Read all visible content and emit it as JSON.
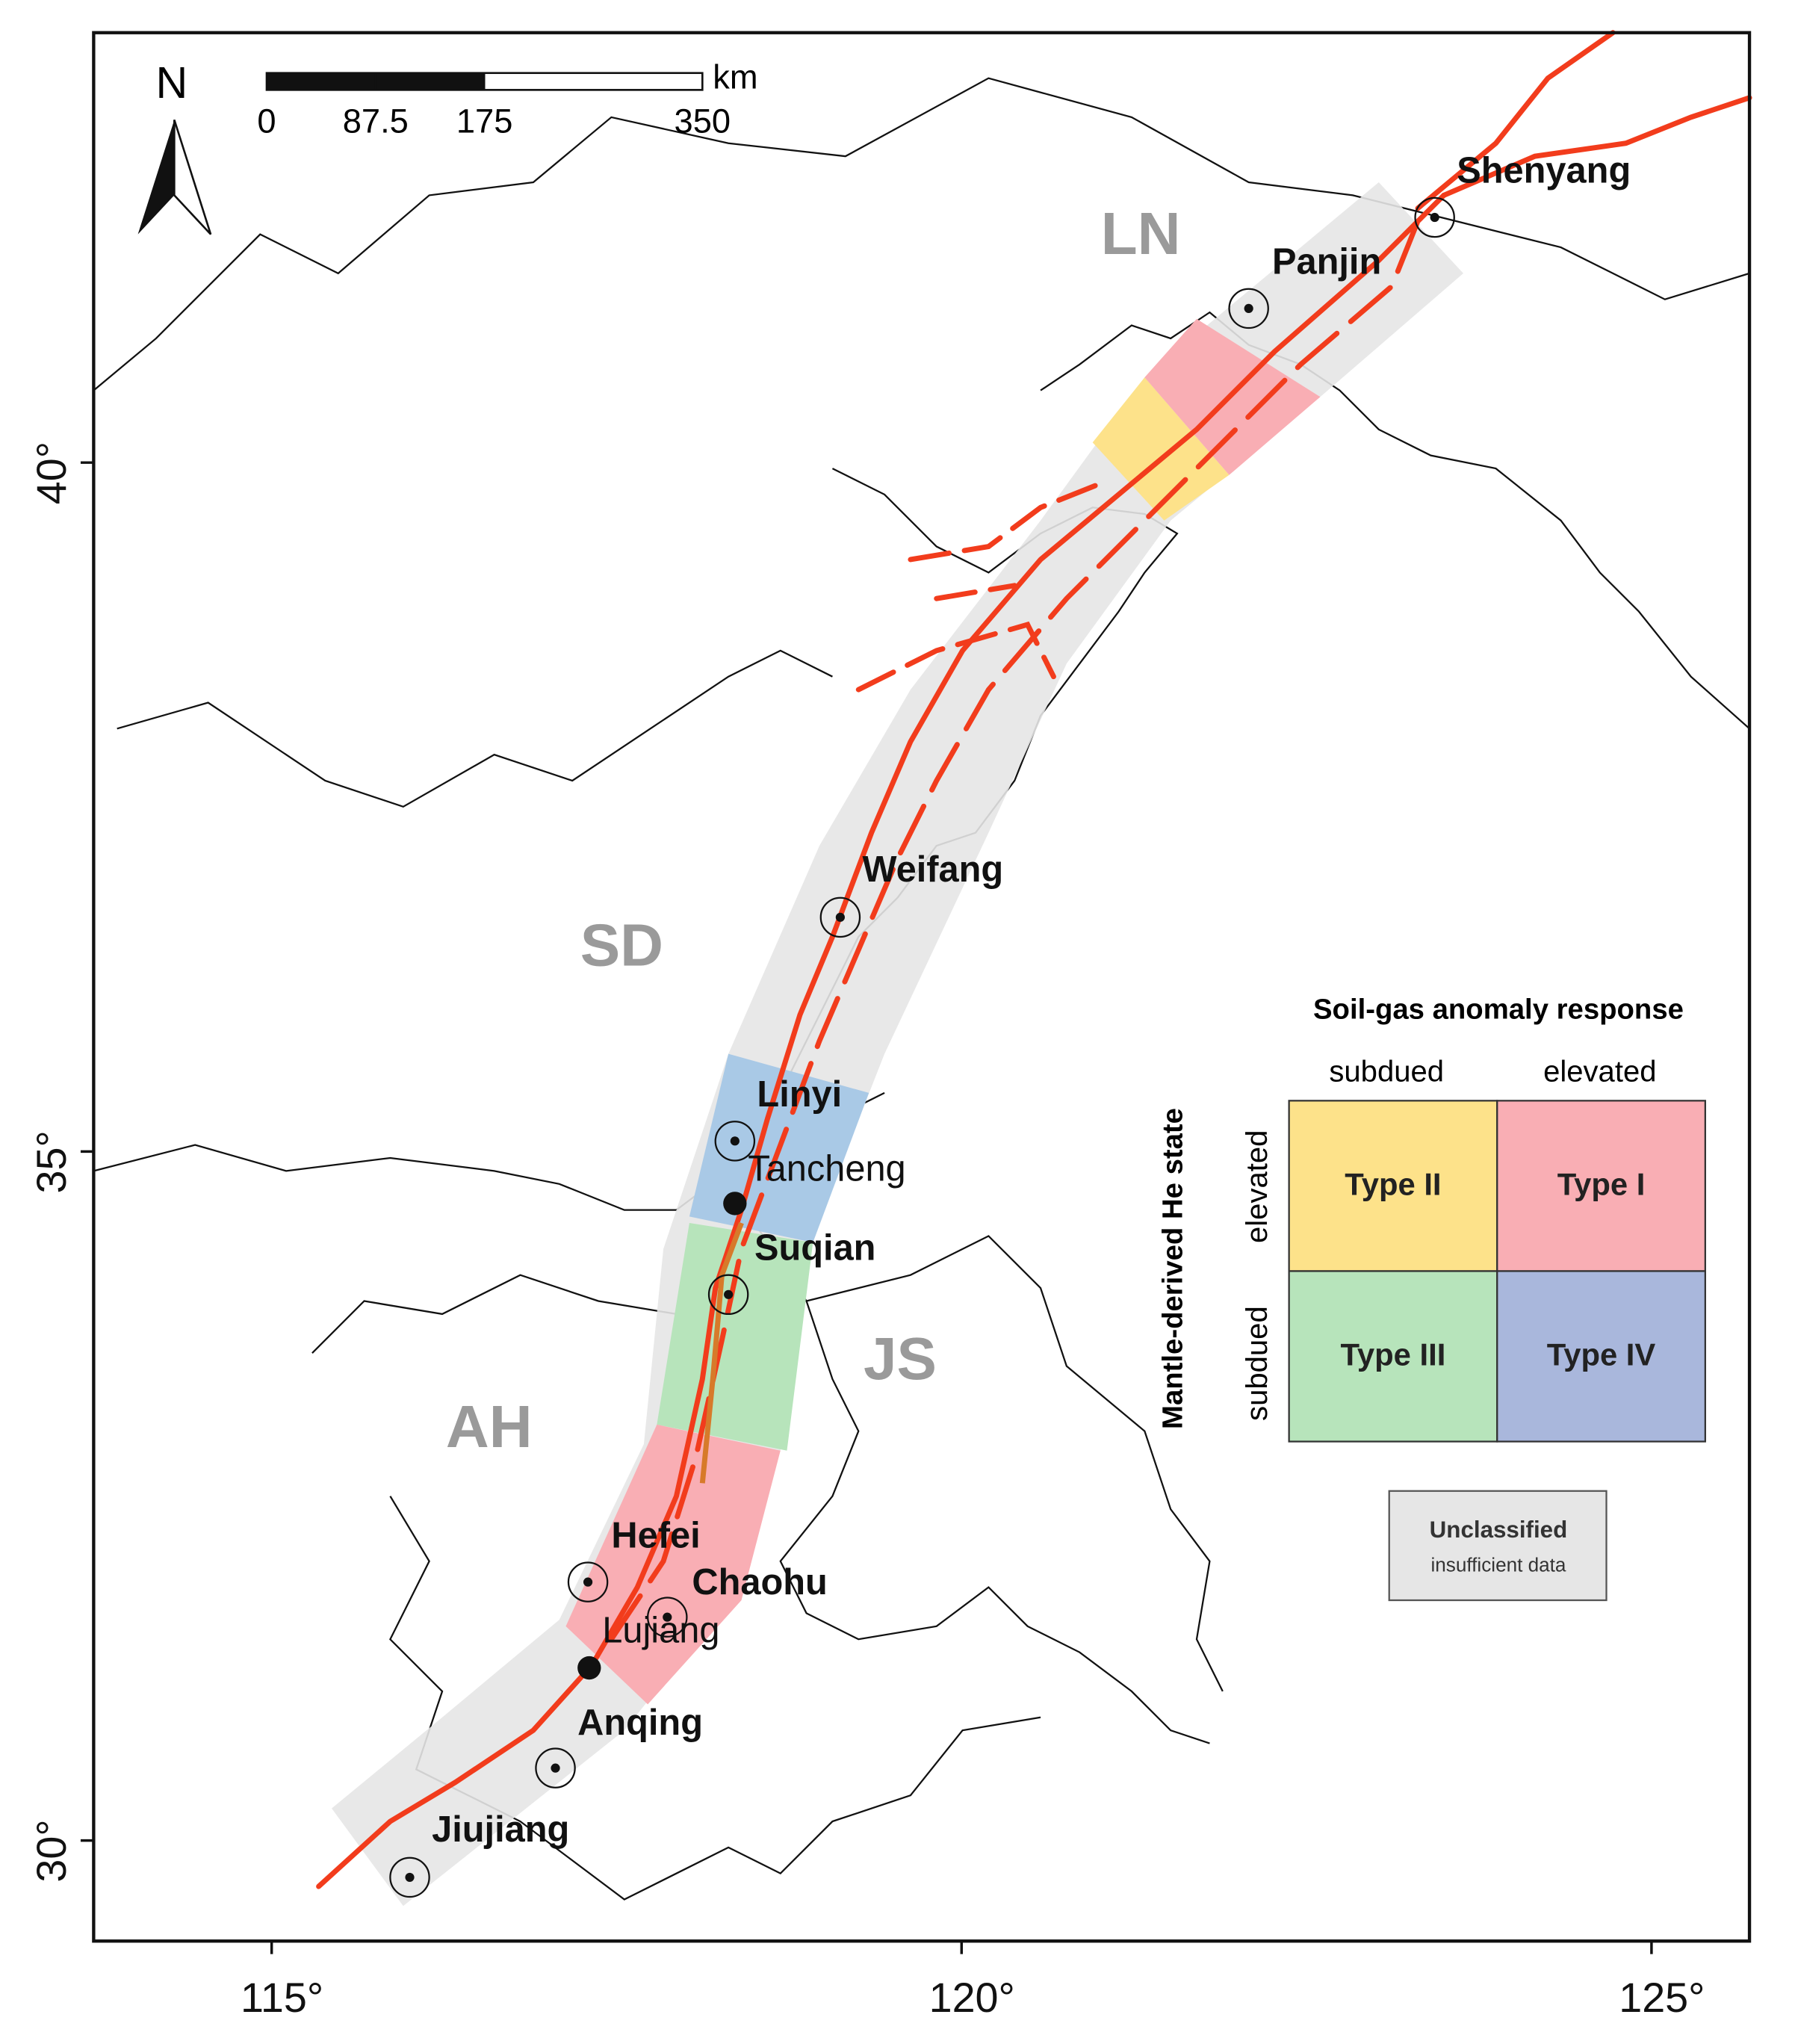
{
  "map": {
    "north_label": "N",
    "scale_bar": {
      "unit": "km",
      "ticks": [
        0,
        87.5,
        175,
        350
      ]
    },
    "lonlim": [
      113.71,
      125.71
    ],
    "latlim": [
      29.27,
      43.12
    ],
    "lon_ticks": [
      {
        "value": 115,
        "label": "115°"
      },
      {
        "value": 120,
        "label": "120°"
      },
      {
        "value": 125,
        "label": "125°"
      }
    ],
    "lat_ticks": [
      {
        "value": 30,
        "label": "30°"
      },
      {
        "value": 35,
        "label": "35°"
      },
      {
        "value": 40,
        "label": "40°"
      }
    ],
    "provinces": [
      "LN",
      "SD",
      "JS",
      "AH"
    ],
    "cities": [
      "Shenyang",
      "Panjin",
      "Weifang",
      "Linyi",
      "Tancheng",
      "Suqian",
      "Hefei",
      "Chaohu",
      "Lujiang",
      "Anqing",
      "Jiujiang"
    ]
  },
  "legend": {
    "title": "Soil-gas anomaly response",
    "columns": [
      "subdued",
      "elevated"
    ],
    "row_axis_label": "Mantle-derived He state",
    "rows": [
      "elevated",
      "subdued"
    ],
    "cells": [
      "Type II",
      "Type I",
      "Type III",
      "Type IV"
    ],
    "unclassified": "Unclassified",
    "unclassified_note": "insufficient data"
  }
}
